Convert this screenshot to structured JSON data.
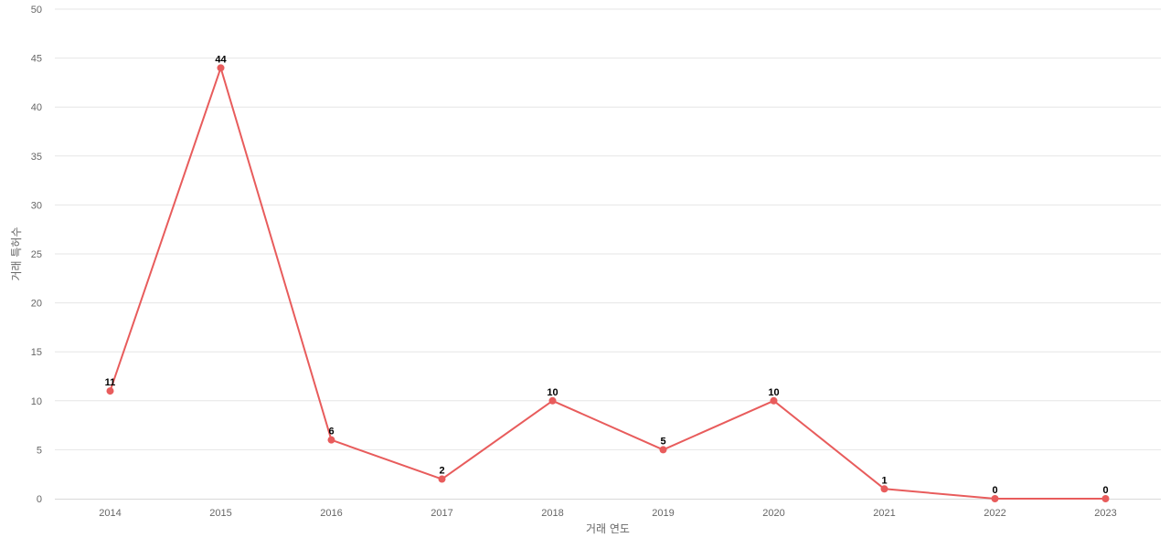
{
  "chart_data": {
    "type": "line",
    "title": "",
    "xlabel": "거래 연도",
    "ylabel": "거래 특허수",
    "categories": [
      "2014",
      "2015",
      "2016",
      "2017",
      "2018",
      "2019",
      "2020",
      "2021",
      "2022",
      "2023"
    ],
    "series": [
      {
        "values": [
          11,
          44,
          6,
          2,
          10,
          5,
          10,
          1,
          0,
          0
        ],
        "color": "#e85c5c"
      }
    ],
    "ylim": [
      0,
      50
    ],
    "yticks": [
      0,
      5,
      10,
      15,
      20,
      25,
      30,
      35,
      40,
      45,
      50
    ],
    "grid": true,
    "data_labels": true,
    "legend": "none"
  }
}
